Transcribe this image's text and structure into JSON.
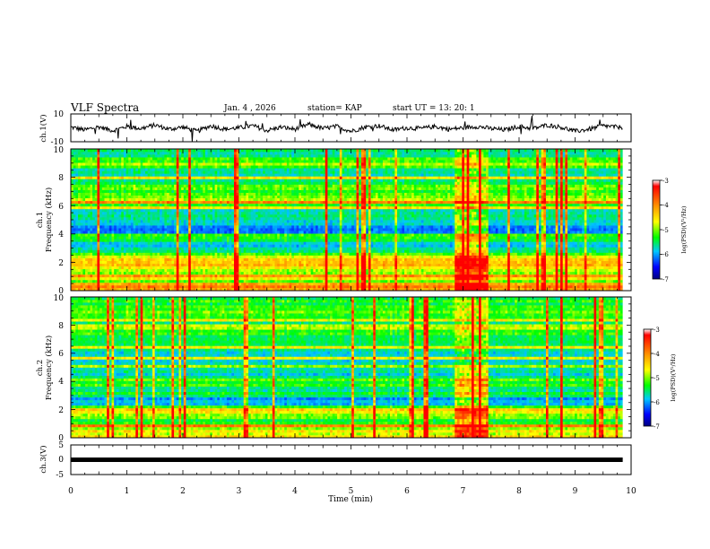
{
  "header": {
    "title": "VLF Spectra",
    "date": "Jan. 4 , 2026",
    "station": "station= KAP",
    "start": "start UT =  13: 20: 1"
  },
  "chart_data": [
    {
      "type": "line",
      "name": "ch.1 waveform",
      "ylabel": "ch.1(V)",
      "ylim": [
        -10,
        10
      ],
      "yticks": [
        "10",
        "-10"
      ],
      "x": [
        0.0,
        0.25,
        0.5,
        0.75,
        1.0,
        1.25,
        1.5,
        1.75,
        2.0,
        2.25,
        2.5,
        2.75,
        3.0,
        3.25,
        3.5,
        3.75,
        4.0,
        4.25,
        4.5,
        4.75,
        5.0,
        5.25,
        5.5,
        5.75,
        6.0,
        6.25,
        6.5,
        6.75,
        7.0,
        7.25,
        7.5,
        7.75,
        8.0,
        8.25,
        8.5,
        8.75,
        9.0,
        9.25,
        9.5,
        9.75
      ],
      "values": [
        0.5,
        -1.5,
        0.8,
        -2.0,
        1.0,
        -0.5,
        2.0,
        -1.0,
        0.5,
        -2.5,
        1.5,
        -1.0,
        0.0,
        1.5,
        -2.0,
        0.5,
        -1.0,
        2.5,
        -0.5,
        1.0,
        -2.5,
        0.5,
        1.5,
        -1.5,
        0.0,
        -0.5,
        1.0,
        -1.0,
        0.0,
        1.0,
        -0.5,
        -1.5,
        1.0,
        -0.5,
        2.0,
        0.5,
        -2.5,
        -1.0,
        1.5,
        0.5
      ]
    },
    {
      "type": "heatmap",
      "name": "ch.1 spectrogram",
      "ylabel": "ch.1",
      "ylabel2": "Frequency (kHz)",
      "ylim": [
        0,
        10
      ],
      "yticks": [
        "0",
        "2",
        "4",
        "6",
        "8",
        "10"
      ],
      "colorbar": {
        "label": "log(PSD)(V²/Hz)",
        "range": [
          -7,
          -3
        ],
        "ticks": [
          "-3",
          "-4",
          "-5",
          "-6",
          "-7"
        ]
      },
      "freq_profile_khz": [
        0.25,
        0.75,
        1.25,
        1.75,
        2.25,
        2.75,
        3.25,
        3.75,
        4.25,
        4.75,
        5.25,
        5.75,
        6.25,
        6.75,
        7.25,
        7.75,
        8.25,
        8.75,
        9.25,
        9.75
      ],
      "freq_profile_logpsd": [
        -3.8,
        -4.8,
        -5.0,
        -4.6,
        -4.2,
        -5.6,
        -5.9,
        -5.4,
        -6.3,
        -6.1,
        -5.3,
        -6.2,
        -5.0,
        -4.6,
        -5.4,
        -5.3,
        -5.5,
        -5.4,
        -5.5,
        -5.4
      ],
      "burst_minutes": [
        6.85,
        7.45
      ]
    },
    {
      "type": "heatmap",
      "name": "ch.2 spectrogram",
      "ylabel": "ch.2",
      "ylabel2": "Frequency (kHz)",
      "ylim": [
        0,
        10
      ],
      "yticks": [
        "0",
        "2",
        "4",
        "6",
        "8",
        "10"
      ],
      "colorbar": {
        "label": "log(PSD)(V²/Hz)",
        "range": [
          -7,
          -3
        ],
        "ticks": [
          "-3",
          "-4",
          "-5",
          "-6",
          "-7"
        ]
      },
      "freq_profile_khz": [
        0.25,
        0.75,
        1.25,
        1.75,
        2.25,
        2.75,
        3.25,
        3.75,
        4.25,
        4.75,
        5.25,
        5.75,
        6.25,
        6.75,
        7.25,
        7.75,
        8.25,
        8.75,
        9.25,
        9.75
      ],
      "freq_profile_logpsd": [
        -4.2,
        -5.0,
        -5.2,
        -4.4,
        -5.6,
        -6.2,
        -5.6,
        -5.5,
        -6.0,
        -5.5,
        -6.1,
        -5.7,
        -6.0,
        -5.7,
        -5.3,
        -4.8,
        -5.2,
        -5.3,
        -5.2,
        -5.4
      ],
      "burst_minutes": [
        6.85,
        7.45
      ]
    },
    {
      "type": "line",
      "name": "ch.3 signal",
      "ylabel": "ch.3(V)",
      "ylim": [
        -5,
        5
      ],
      "yticks": [
        "5",
        "0",
        "-5"
      ],
      "x": [
        0.0,
        9.85
      ],
      "values": [
        0.0,
        0.0
      ]
    }
  ],
  "xaxis": {
    "label": "Time (min)",
    "xlim": [
      0,
      10
    ],
    "ticks": [
      "0",
      "1",
      "2",
      "3",
      "4",
      "5",
      "6",
      "7",
      "8",
      "9",
      "10"
    ],
    "data_end_minutes": 9.85
  },
  "colors": {
    "axis": "#000000",
    "background": "#ffffff"
  }
}
